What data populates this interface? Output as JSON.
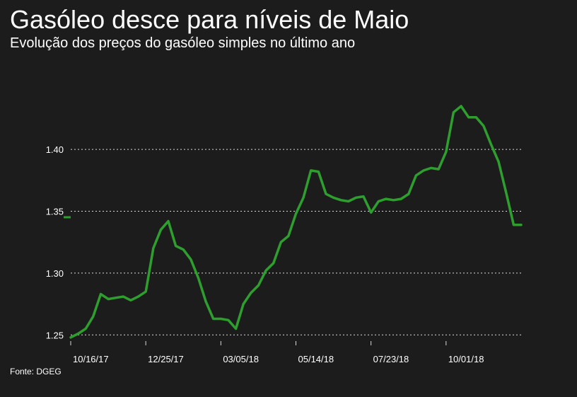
{
  "header": {
    "title": "Gasóleo desce para níveis de Maio",
    "subtitle": "Evolução dos preços do gasóleo simples no último ano"
  },
  "footer": {
    "source": "Fonte: DGEG"
  },
  "colors": {
    "background": "#1c1c1c",
    "line": "#2e9e2e",
    "grid": "#d9d9d9",
    "text": "#ffffff"
  },
  "chart_data": {
    "type": "line",
    "title": "Gasóleo desce para níveis de Maio",
    "subtitle": "Evolução dos preços do gasóleo simples no último ano",
    "xlabel": "",
    "ylabel": "",
    "ylim": [
      1.245,
      1.435
    ],
    "yticks": [
      1.25,
      1.3,
      1.35,
      1.4
    ],
    "ytick_labels": [
      "1.25",
      "1.30",
      "1.35",
      "1.40"
    ],
    "xticks": [
      "2017-10-16",
      "2017-12-25",
      "2018-03-05",
      "2018-05-14",
      "2018-07-23",
      "2018-10-01"
    ],
    "xtick_labels": [
      "10/16/17",
      "12/25/17",
      "03/05/18",
      "05/14/18",
      "07/23/18",
      "10/01/18"
    ],
    "grid": true,
    "legend": "none",
    "series": [
      {
        "x": [
          "2017-10-16",
          "2017-10-23",
          "2017-10-30",
          "2017-11-06",
          "2017-11-13",
          "2017-11-20",
          "2017-11-27",
          "2017-12-04",
          "2017-12-11",
          "2017-12-18",
          "2017-12-25",
          "2018-01-01",
          "2018-01-08",
          "2018-01-15",
          "2018-01-22",
          "2018-01-29",
          "2018-02-05",
          "2018-02-12",
          "2018-02-19",
          "2018-02-26",
          "2018-03-05",
          "2018-03-12",
          "2018-03-19",
          "2018-03-26",
          "2018-04-02",
          "2018-04-09",
          "2018-04-16",
          "2018-04-23",
          "2018-04-30",
          "2018-05-07",
          "2018-05-14",
          "2018-05-21",
          "2018-05-28",
          "2018-06-04",
          "2018-06-11",
          "2018-06-18",
          "2018-06-25",
          "2018-07-02",
          "2018-07-09",
          "2018-07-16",
          "2018-07-23",
          "2018-07-30",
          "2018-08-06",
          "2018-08-13",
          "2018-08-20",
          "2018-08-27",
          "2018-09-03",
          "2018-09-10",
          "2018-09-17",
          "2018-09-24",
          "2018-10-01",
          "2018-10-08",
          "2018-10-15",
          "2018-10-22",
          "2018-10-29",
          "2018-11-05",
          "2018-11-12",
          "2018-11-19",
          "2018-11-26",
          "2018-12-03",
          "2018-12-10"
        ],
        "y": [
          1.248,
          1.251,
          1.255,
          1.265,
          1.283,
          1.279,
          1.28,
          1.281,
          1.278,
          1.281,
          1.285,
          1.32,
          1.335,
          1.342,
          1.322,
          1.319,
          1.311,
          1.296,
          1.277,
          1.263,
          1.263,
          1.262,
          1.255,
          1.275,
          1.284,
          1.29,
          1.302,
          1.308,
          1.325,
          1.33,
          1.348,
          1.361,
          1.383,
          1.382,
          1.364,
          1.361,
          1.359,
          1.358,
          1.361,
          1.362,
          1.349,
          1.358,
          1.36,
          1.359,
          1.36,
          1.364,
          1.379,
          1.383,
          1.385,
          1.384,
          1.398,
          1.43,
          1.435,
          1.426,
          1.426,
          1.419,
          1.404,
          1.39,
          1.365,
          1.339,
          1.339
        ]
      }
    ]
  }
}
